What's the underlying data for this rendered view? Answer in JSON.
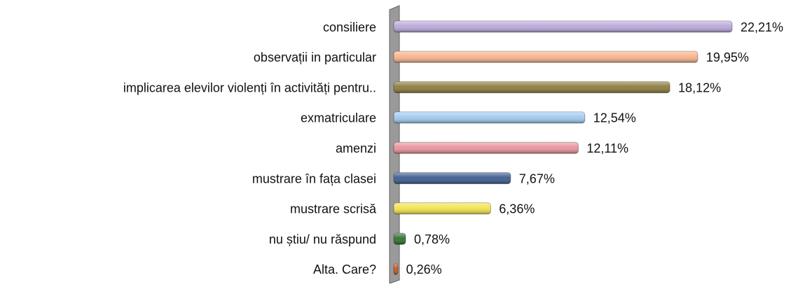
{
  "chart_data": {
    "type": "bar",
    "orientation": "horizontal",
    "categories": [
      "consiliere",
      "observații in particular",
      "implicarea elevilor violenți în activități pentru..",
      "exmatriculare",
      "amenzi",
      "mustrare în fața clasei",
      "mustrare scrisă",
      "nu știu/ nu răspund",
      "Alta. Care?"
    ],
    "values": [
      22.21,
      19.95,
      18.12,
      12.54,
      12.11,
      7.67,
      6.36,
      0.78,
      0.26
    ],
    "value_labels": [
      "22,21%",
      "19,95%",
      "18,12%",
      "12,54%",
      "12,11%",
      "7,67%",
      "6,36%",
      "0,78%",
      "0,26%"
    ],
    "colors": [
      "#b9a7da",
      "#f8b28a",
      "#8c7b3c",
      "#9fcaf0",
      "#ea929b",
      "#3b5b8e",
      "#f2e24c",
      "#2f6f2f",
      "#d2521c"
    ]
  }
}
